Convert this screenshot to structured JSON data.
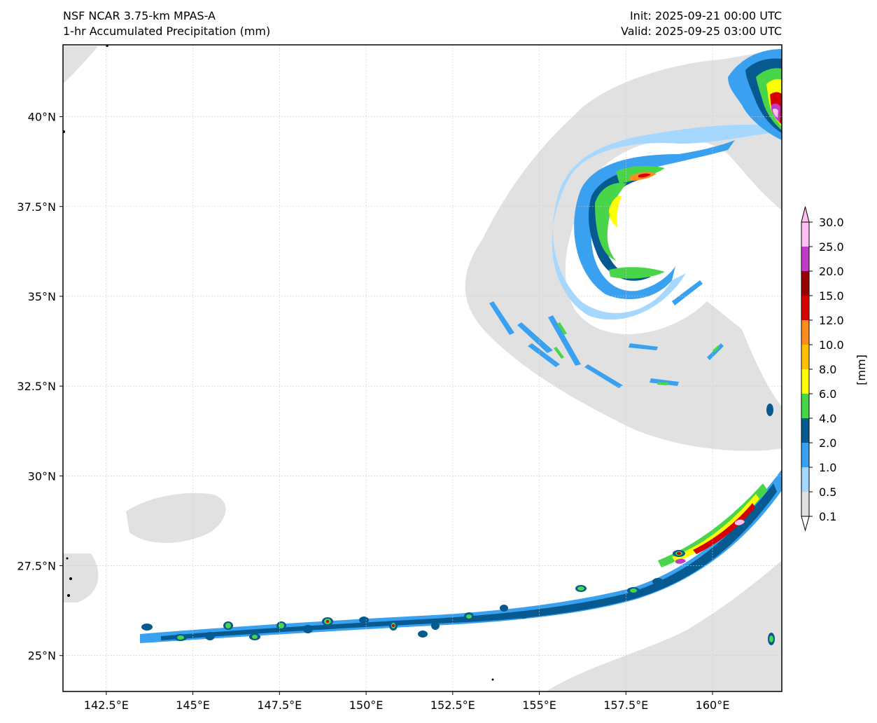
{
  "title_left": {
    "line1": "NSF NCAR 3.75-km MPAS-A",
    "line2": "1-hr Accumulated Precipitation (mm)"
  },
  "title_right": {
    "line1": "Init: 2025-09-21 00:00 UTC",
    "line2": "Valid: 2025-09-25 03:00 UTC"
  },
  "map": {
    "lon_range": [
      141.25,
      162.0
    ],
    "lat_range": [
      24.0,
      42.0
    ],
    "lon_ticks": [
      {
        "value": 142.5,
        "label": "142.5°E"
      },
      {
        "value": 145.0,
        "label": "145°E"
      },
      {
        "value": 147.5,
        "label": "147.5°E"
      },
      {
        "value": 150.0,
        "label": "150°E"
      },
      {
        "value": 152.5,
        "label": "152.5°E"
      },
      {
        "value": 155.0,
        "label": "155°E"
      },
      {
        "value": 157.5,
        "label": "157.5°E"
      },
      {
        "value": 160.0,
        "label": "160°E"
      }
    ],
    "lat_ticks": [
      {
        "value": 25.0,
        "label": "25°N"
      },
      {
        "value": 27.5,
        "label": "27.5°N"
      },
      {
        "value": 30.0,
        "label": "30°N"
      },
      {
        "value": 32.5,
        "label": "32.5°N"
      },
      {
        "value": 35.0,
        "label": "35°N"
      },
      {
        "value": 37.5,
        "label": "37.5°N"
      },
      {
        "value": 40.0,
        "label": "40°N"
      }
    ]
  },
  "colorbar": {
    "unit_label": "[mm]",
    "levels": [
      "0.1",
      "0.5",
      "1.0",
      "2.0",
      "4.0",
      "6.0",
      "8.0",
      "10.0",
      "12.0",
      "15.0",
      "20.0",
      "25.0",
      "30.0"
    ],
    "colors": [
      "#e1e1e1",
      "#a6d8ff",
      "#3aa0f0",
      "#065a90",
      "#49d549",
      "#ffff00",
      "#ffc000",
      "#ff8c1e",
      "#d70000",
      "#960000",
      "#c03cc8",
      "#ffbff0"
    ]
  },
  "precip_colors": {
    "trace": "#e1e1e1",
    "light": "#a6d8ff",
    "blue": "#3aa0f0",
    "dark_blue": "#065a90",
    "green": "#49d549",
    "yellow": "#ffff00",
    "orange": "#ffc000",
    "dark_orange": "#ff8c1e",
    "red": "#d70000",
    "dark_red": "#960000",
    "magenta": "#c03cc8",
    "pink": "#ffbff0"
  }
}
